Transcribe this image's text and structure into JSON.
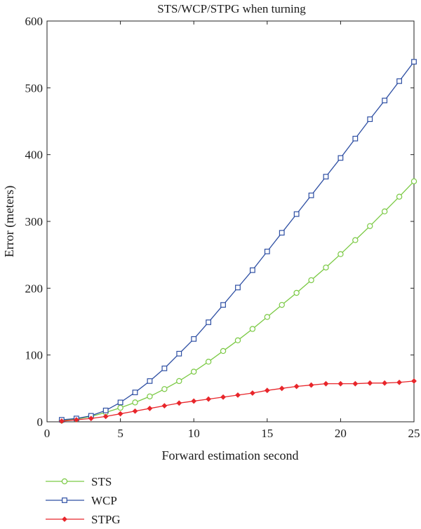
{
  "chart_data": {
    "type": "line",
    "title": "STS/WCP/STPG when turning",
    "xlabel": "Forward estimation second",
    "ylabel": "Error (meters)",
    "xlim": [
      0,
      25
    ],
    "ylim": [
      0,
      600
    ],
    "xticks": [
      0,
      5,
      10,
      15,
      20,
      25
    ],
    "yticks": [
      0,
      100,
      200,
      300,
      400,
      500,
      600
    ],
    "grid": false,
    "legend_position": "below-left",
    "x": [
      1,
      2,
      3,
      4,
      5,
      6,
      7,
      8,
      9,
      10,
      11,
      12,
      13,
      14,
      15,
      16,
      17,
      18,
      19,
      20,
      21,
      22,
      23,
      24,
      25
    ],
    "series": [
      {
        "name": "STS",
        "color": "#7ac943",
        "marker": "circle",
        "values": [
          2,
          4,
          8,
          14,
          21,
          29,
          38,
          49,
          61,
          75,
          90,
          106,
          122,
          139,
          157,
          175,
          193,
          212,
          231,
          251,
          272,
          293,
          315,
          337,
          360
        ]
      },
      {
        "name": "WCP",
        "color": "#2e4fa3",
        "marker": "square",
        "values": [
          3,
          5,
          9,
          17,
          29,
          44,
          61,
          80,
          102,
          124,
          149,
          175,
          201,
          227,
          255,
          283,
          311,
          339,
          367,
          395,
          424,
          453,
          481,
          510,
          539
        ]
      },
      {
        "name": "STPG",
        "color": "#e8262b",
        "marker": "diamond",
        "values": [
          1,
          3,
          5,
          8,
          12,
          16,
          20,
          24,
          28,
          31,
          34,
          37,
          40,
          43,
          47,
          50,
          53,
          55,
          57,
          57,
          57,
          58,
          58,
          59,
          61
        ]
      }
    ]
  }
}
